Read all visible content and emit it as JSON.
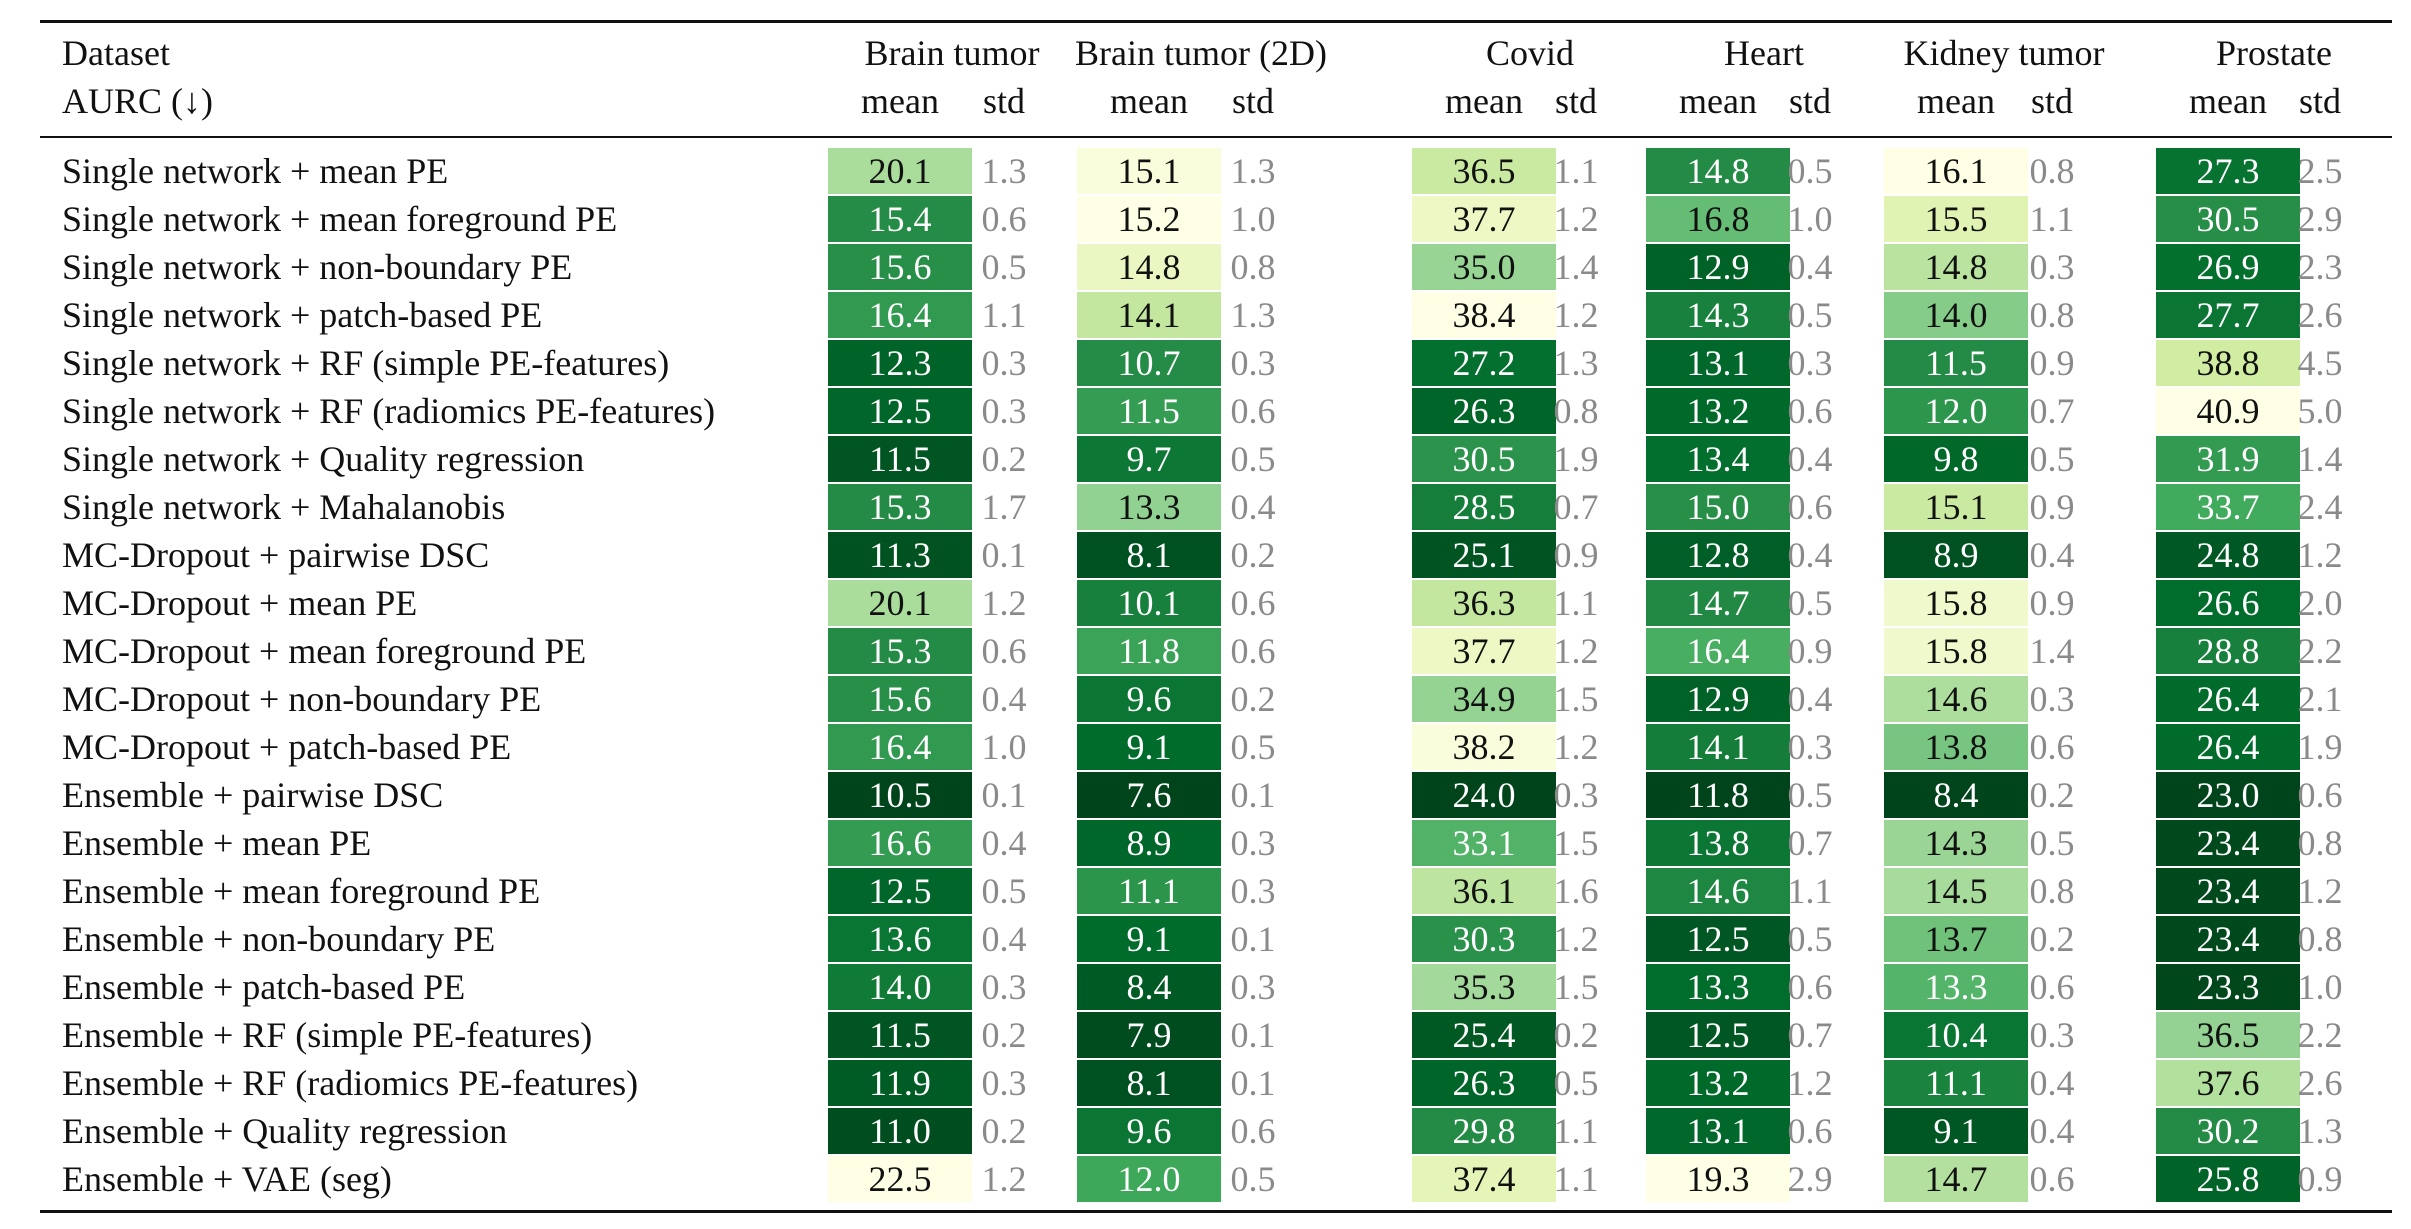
{
  "header": {
    "dataset_label": "Dataset",
    "metric_label": "AURC (↓)",
    "mean_label": "mean",
    "std_label": "std"
  },
  "datasets": [
    "Brain tumor",
    "Brain tumor (2D)",
    "Covid",
    "Heart",
    "Kidney tumor",
    "Prostate"
  ],
  "rows": [
    {
      "label": "Single network + mean PE",
      "values": [
        [
          "20.1",
          "1.3"
        ],
        [
          "15.1",
          "1.3"
        ],
        [
          "36.5",
          "1.1"
        ],
        [
          "14.8",
          "0.5"
        ],
        [
          "16.1",
          "0.8"
        ],
        [
          "27.3",
          "2.5"
        ]
      ]
    },
    {
      "label": "Single network + mean foreground PE",
      "values": [
        [
          "15.4",
          "0.6"
        ],
        [
          "15.2",
          "1.0"
        ],
        [
          "37.7",
          "1.2"
        ],
        [
          "16.8",
          "1.0"
        ],
        [
          "15.5",
          "1.1"
        ],
        [
          "30.5",
          "2.9"
        ]
      ]
    },
    {
      "label": "Single network + non-boundary PE",
      "values": [
        [
          "15.6",
          "0.5"
        ],
        [
          "14.8",
          "0.8"
        ],
        [
          "35.0",
          "1.4"
        ],
        [
          "12.9",
          "0.4"
        ],
        [
          "14.8",
          "0.3"
        ],
        [
          "26.9",
          "2.3"
        ]
      ]
    },
    {
      "label": "Single network + patch-based PE",
      "values": [
        [
          "16.4",
          "1.1"
        ],
        [
          "14.1",
          "1.3"
        ],
        [
          "38.4",
          "1.2"
        ],
        [
          "14.3",
          "0.5"
        ],
        [
          "14.0",
          "0.8"
        ],
        [
          "27.7",
          "2.6"
        ]
      ]
    },
    {
      "label": "Single network + RF (simple PE-features)",
      "values": [
        [
          "12.3",
          "0.3"
        ],
        [
          "10.7",
          "0.3"
        ],
        [
          "27.2",
          "1.3"
        ],
        [
          "13.1",
          "0.3"
        ],
        [
          "11.5",
          "0.9"
        ],
        [
          "38.8",
          "4.5"
        ]
      ]
    },
    {
      "label": "Single network + RF (radiomics PE-features)",
      "values": [
        [
          "12.5",
          "0.3"
        ],
        [
          "11.5",
          "0.6"
        ],
        [
          "26.3",
          "0.8"
        ],
        [
          "13.2",
          "0.6"
        ],
        [
          "12.0",
          "0.7"
        ],
        [
          "40.9",
          "5.0"
        ]
      ]
    },
    {
      "label": "Single network + Quality regression",
      "values": [
        [
          "11.5",
          "0.2"
        ],
        [
          "9.7",
          "0.5"
        ],
        [
          "30.5",
          "1.9"
        ],
        [
          "13.4",
          "0.4"
        ],
        [
          "9.8",
          "0.5"
        ],
        [
          "31.9",
          "1.4"
        ]
      ]
    },
    {
      "label": "Single network + Mahalanobis",
      "values": [
        [
          "15.3",
          "1.7"
        ],
        [
          "13.3",
          "0.4"
        ],
        [
          "28.5",
          "0.7"
        ],
        [
          "15.0",
          "0.6"
        ],
        [
          "15.1",
          "0.9"
        ],
        [
          "33.7",
          "2.4"
        ]
      ]
    },
    {
      "label": "MC-Dropout + pairwise DSC",
      "values": [
        [
          "11.3",
          "0.1"
        ],
        [
          "8.1",
          "0.2"
        ],
        [
          "25.1",
          "0.9"
        ],
        [
          "12.8",
          "0.4"
        ],
        [
          "8.9",
          "0.4"
        ],
        [
          "24.8",
          "1.2"
        ]
      ]
    },
    {
      "label": "MC-Dropout + mean PE",
      "values": [
        [
          "20.1",
          "1.2"
        ],
        [
          "10.1",
          "0.6"
        ],
        [
          "36.3",
          "1.1"
        ],
        [
          "14.7",
          "0.5"
        ],
        [
          "15.8",
          "0.9"
        ],
        [
          "26.6",
          "2.0"
        ]
      ]
    },
    {
      "label": "MC-Dropout + mean foreground PE",
      "values": [
        [
          "15.3",
          "0.6"
        ],
        [
          "11.8",
          "0.6"
        ],
        [
          "37.7",
          "1.2"
        ],
        [
          "16.4",
          "0.9"
        ],
        [
          "15.8",
          "1.4"
        ],
        [
          "28.8",
          "2.2"
        ]
      ]
    },
    {
      "label": "MC-Dropout + non-boundary PE",
      "values": [
        [
          "15.6",
          "0.4"
        ],
        [
          "9.6",
          "0.2"
        ],
        [
          "34.9",
          "1.5"
        ],
        [
          "12.9",
          "0.4"
        ],
        [
          "14.6",
          "0.3"
        ],
        [
          "26.4",
          "2.1"
        ]
      ]
    },
    {
      "label": "MC-Dropout + patch-based PE",
      "values": [
        [
          "16.4",
          "1.0"
        ],
        [
          "9.1",
          "0.5"
        ],
        [
          "38.2",
          "1.2"
        ],
        [
          "14.1",
          "0.3"
        ],
        [
          "13.8",
          "0.6"
        ],
        [
          "26.4",
          "1.9"
        ]
      ]
    },
    {
      "label": "Ensemble + pairwise DSC",
      "values": [
        [
          "10.5",
          "0.1"
        ],
        [
          "7.6",
          "0.1"
        ],
        [
          "24.0",
          "0.3"
        ],
        [
          "11.8",
          "0.5"
        ],
        [
          "8.4",
          "0.2"
        ],
        [
          "23.0",
          "0.6"
        ]
      ]
    },
    {
      "label": "Ensemble + mean PE",
      "values": [
        [
          "16.6",
          "0.4"
        ],
        [
          "8.9",
          "0.3"
        ],
        [
          "33.1",
          "1.5"
        ],
        [
          "13.8",
          "0.7"
        ],
        [
          "14.3",
          "0.5"
        ],
        [
          "23.4",
          "0.8"
        ]
      ]
    },
    {
      "label": "Ensemble + mean foreground PE",
      "values": [
        [
          "12.5",
          "0.5"
        ],
        [
          "11.1",
          "0.3"
        ],
        [
          "36.1",
          "1.6"
        ],
        [
          "14.6",
          "1.1"
        ],
        [
          "14.5",
          "0.8"
        ],
        [
          "23.4",
          "1.2"
        ]
      ]
    },
    {
      "label": "Ensemble + non-boundary PE",
      "values": [
        [
          "13.6",
          "0.4"
        ],
        [
          "9.1",
          "0.1"
        ],
        [
          "30.3",
          "1.2"
        ],
        [
          "12.5",
          "0.5"
        ],
        [
          "13.7",
          "0.2"
        ],
        [
          "23.4",
          "0.8"
        ]
      ]
    },
    {
      "label": "Ensemble + patch-based PE",
      "values": [
        [
          "14.0",
          "0.3"
        ],
        [
          "8.4",
          "0.3"
        ],
        [
          "35.3",
          "1.5"
        ],
        [
          "13.3",
          "0.6"
        ],
        [
          "13.3",
          "0.6"
        ],
        [
          "23.3",
          "1.0"
        ]
      ]
    },
    {
      "label": "Ensemble + RF (simple PE-features)",
      "values": [
        [
          "11.5",
          "0.2"
        ],
        [
          "7.9",
          "0.1"
        ],
        [
          "25.4",
          "0.2"
        ],
        [
          "12.5",
          "0.7"
        ],
        [
          "10.4",
          "0.3"
        ],
        [
          "36.5",
          "2.2"
        ]
      ]
    },
    {
      "label": "Ensemble + RF (radiomics PE-features)",
      "values": [
        [
          "11.9",
          "0.3"
        ],
        [
          "8.1",
          "0.1"
        ],
        [
          "26.3",
          "0.5"
        ],
        [
          "13.2",
          "1.2"
        ],
        [
          "11.1",
          "0.4"
        ],
        [
          "37.6",
          "2.6"
        ]
      ]
    },
    {
      "label": "Ensemble + Quality regression",
      "values": [
        [
          "11.0",
          "0.2"
        ],
        [
          "9.6",
          "0.6"
        ],
        [
          "29.8",
          "1.1"
        ],
        [
          "13.1",
          "0.6"
        ],
        [
          "9.1",
          "0.4"
        ],
        [
          "30.2",
          "1.3"
        ]
      ]
    },
    {
      "label": "Ensemble + VAE (seg)",
      "values": [
        [
          "22.5",
          "1.2"
        ],
        [
          "12.0",
          "0.5"
        ],
        [
          "37.4",
          "1.1"
        ],
        [
          "19.3",
          "2.9"
        ],
        [
          "14.7",
          "0.6"
        ],
        [
          "25.8",
          "0.9"
        ]
      ]
    }
  ]
}
